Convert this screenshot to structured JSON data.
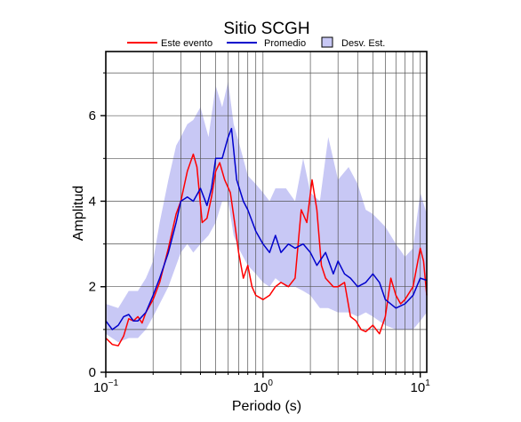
{
  "chart_data": {
    "type": "line",
    "title": "Sitio SCGH",
    "xlabel": "Periodo (s)",
    "ylabel": "Amplitud",
    "x_scale": "log",
    "xlim": [
      0.1,
      11
    ],
    "ylim": [
      0,
      7.5
    ],
    "x_ticks": [
      {
        "value": 0.1,
        "base": "10",
        "exp": "−1"
      },
      {
        "value": 1,
        "base": "10",
        "exp": "0"
      },
      {
        "value": 10,
        "base": "10",
        "exp": "1"
      }
    ],
    "y_ticks": [
      0,
      2,
      4,
      6
    ],
    "grid": true,
    "legend": {
      "placement": "top",
      "entries": [
        {
          "label": "Este evento",
          "color": "#ff0000",
          "kind": "line"
        },
        {
          "label": "Promedio",
          "color": "#0000cc",
          "kind": "line"
        },
        {
          "label": "Desv. Est.",
          "color": "#c8c8f5",
          "kind": "band"
        }
      ]
    },
    "series": [
      {
        "name": "Este evento",
        "color": "#ff0000",
        "points": [
          [
            0.1,
            0.8
          ],
          [
            0.11,
            0.65
          ],
          [
            0.12,
            0.62
          ],
          [
            0.13,
            0.85
          ],
          [
            0.14,
            1.25
          ],
          [
            0.15,
            1.2
          ],
          [
            0.16,
            1.3
          ],
          [
            0.17,
            1.15
          ],
          [
            0.18,
            1.4
          ],
          [
            0.2,
            1.7
          ],
          [
            0.22,
            2.1
          ],
          [
            0.25,
            2.9
          ],
          [
            0.28,
            3.7
          ],
          [
            0.3,
            4.0
          ],
          [
            0.33,
            4.7
          ],
          [
            0.36,
            5.1
          ],
          [
            0.38,
            4.8
          ],
          [
            0.41,
            3.5
          ],
          [
            0.44,
            3.6
          ],
          [
            0.47,
            4.1
          ],
          [
            0.5,
            4.7
          ],
          [
            0.53,
            4.9
          ],
          [
            0.57,
            4.5
          ],
          [
            0.62,
            4.2
          ],
          [
            0.66,
            3.5
          ],
          [
            0.7,
            2.8
          ],
          [
            0.75,
            2.2
          ],
          [
            0.8,
            2.5
          ],
          [
            0.85,
            2.0
          ],
          [
            0.9,
            1.8
          ],
          [
            0.95,
            1.75
          ],
          [
            1.0,
            1.7
          ],
          [
            1.1,
            1.8
          ],
          [
            1.2,
            2.0
          ],
          [
            1.3,
            2.1
          ],
          [
            1.45,
            2.0
          ],
          [
            1.6,
            2.2
          ],
          [
            1.75,
            3.8
          ],
          [
            1.9,
            3.5
          ],
          [
            2.05,
            4.5
          ],
          [
            2.2,
            3.8
          ],
          [
            2.35,
            2.5
          ],
          [
            2.5,
            2.2
          ],
          [
            2.8,
            2.0
          ],
          [
            3.0,
            2.0
          ],
          [
            3.3,
            2.1
          ],
          [
            3.6,
            1.3
          ],
          [
            3.9,
            1.2
          ],
          [
            4.2,
            1.0
          ],
          [
            4.5,
            0.95
          ],
          [
            5.0,
            1.1
          ],
          [
            5.5,
            0.9
          ],
          [
            6.0,
            1.3
          ],
          [
            6.5,
            2.2
          ],
          [
            7.0,
            1.8
          ],
          [
            7.5,
            1.6
          ],
          [
            8.0,
            1.7
          ],
          [
            9.0,
            2.0
          ],
          [
            10.0,
            2.9
          ],
          [
            10.5,
            2.6
          ],
          [
            11.0,
            1.8
          ]
        ]
      },
      {
        "name": "Promedio",
        "color": "#0000cc",
        "points": [
          [
            0.1,
            1.2
          ],
          [
            0.11,
            1.0
          ],
          [
            0.12,
            1.1
          ],
          [
            0.13,
            1.3
          ],
          [
            0.14,
            1.35
          ],
          [
            0.15,
            1.2
          ],
          [
            0.16,
            1.2
          ],
          [
            0.18,
            1.4
          ],
          [
            0.2,
            1.8
          ],
          [
            0.22,
            2.2
          ],
          [
            0.25,
            2.8
          ],
          [
            0.28,
            3.5
          ],
          [
            0.3,
            4.0
          ],
          [
            0.33,
            4.1
          ],
          [
            0.36,
            4.0
          ],
          [
            0.4,
            4.3
          ],
          [
            0.44,
            3.9
          ],
          [
            0.47,
            4.3
          ],
          [
            0.5,
            5.0
          ],
          [
            0.55,
            5.0
          ],
          [
            0.6,
            5.5
          ],
          [
            0.63,
            5.7
          ],
          [
            0.68,
            4.5
          ],
          [
            0.75,
            4.0
          ],
          [
            0.8,
            3.8
          ],
          [
            0.9,
            3.3
          ],
          [
            1.0,
            3.0
          ],
          [
            1.1,
            2.8
          ],
          [
            1.2,
            3.2
          ],
          [
            1.3,
            2.8
          ],
          [
            1.45,
            3.0
          ],
          [
            1.6,
            2.9
          ],
          [
            1.8,
            3.0
          ],
          [
            2.0,
            2.8
          ],
          [
            2.2,
            2.5
          ],
          [
            2.5,
            2.8
          ],
          [
            2.8,
            2.3
          ],
          [
            3.0,
            2.6
          ],
          [
            3.3,
            2.3
          ],
          [
            3.6,
            2.2
          ],
          [
            4.0,
            2.0
          ],
          [
            4.5,
            2.1
          ],
          [
            5.0,
            2.3
          ],
          [
            5.5,
            2.1
          ],
          [
            6.0,
            1.7
          ],
          [
            7.0,
            1.5
          ],
          [
            8.0,
            1.6
          ],
          [
            9.0,
            1.8
          ],
          [
            10.0,
            2.2
          ],
          [
            11.0,
            2.15
          ]
        ]
      }
    ],
    "band": {
      "name": "Desv. Est.",
      "color": "#c8c8f5",
      "x": [
        0.1,
        0.12,
        0.14,
        0.16,
        0.18,
        0.2,
        0.22,
        0.25,
        0.28,
        0.3,
        0.33,
        0.36,
        0.4,
        0.45,
        0.5,
        0.55,
        0.6,
        0.65,
        0.7,
        0.8,
        0.9,
        1.0,
        1.1,
        1.2,
        1.4,
        1.6,
        1.8,
        2.0,
        2.3,
        2.6,
        3.0,
        3.5,
        4.0,
        4.5,
        5.0,
        6.0,
        7.0,
        8.0,
        9.0,
        10.0,
        11.0
      ],
      "upper": [
        1.6,
        1.5,
        1.9,
        1.9,
        2.2,
        2.6,
        3.5,
        4.5,
        5.3,
        5.5,
        5.8,
        5.9,
        6.2,
        5.5,
        6.7,
        6.2,
        6.8,
        5.8,
        5.4,
        4.6,
        4.4,
        4.2,
        4.0,
        4.3,
        4.3,
        4.0,
        5.0,
        4.2,
        4.0,
        5.5,
        4.5,
        4.8,
        4.4,
        3.8,
        3.7,
        3.4,
        3.0,
        2.7,
        2.9,
        4.2,
        3.7
      ],
      "lower": [
        0.9,
        0.7,
        0.8,
        0.8,
        1.0,
        1.3,
        1.6,
        2.0,
        2.5,
        2.8,
        3.0,
        2.8,
        3.0,
        3.2,
        3.5,
        4.0,
        4.0,
        3.2,
        2.9,
        2.5,
        2.3,
        2.1,
        2.0,
        2.2,
        2.0,
        2.0,
        1.9,
        1.8,
        1.5,
        1.5,
        1.4,
        1.4,
        1.3,
        1.4,
        1.3,
        1.1,
        1.0,
        1.0,
        1.0,
        1.2,
        1.4
      ]
    }
  }
}
